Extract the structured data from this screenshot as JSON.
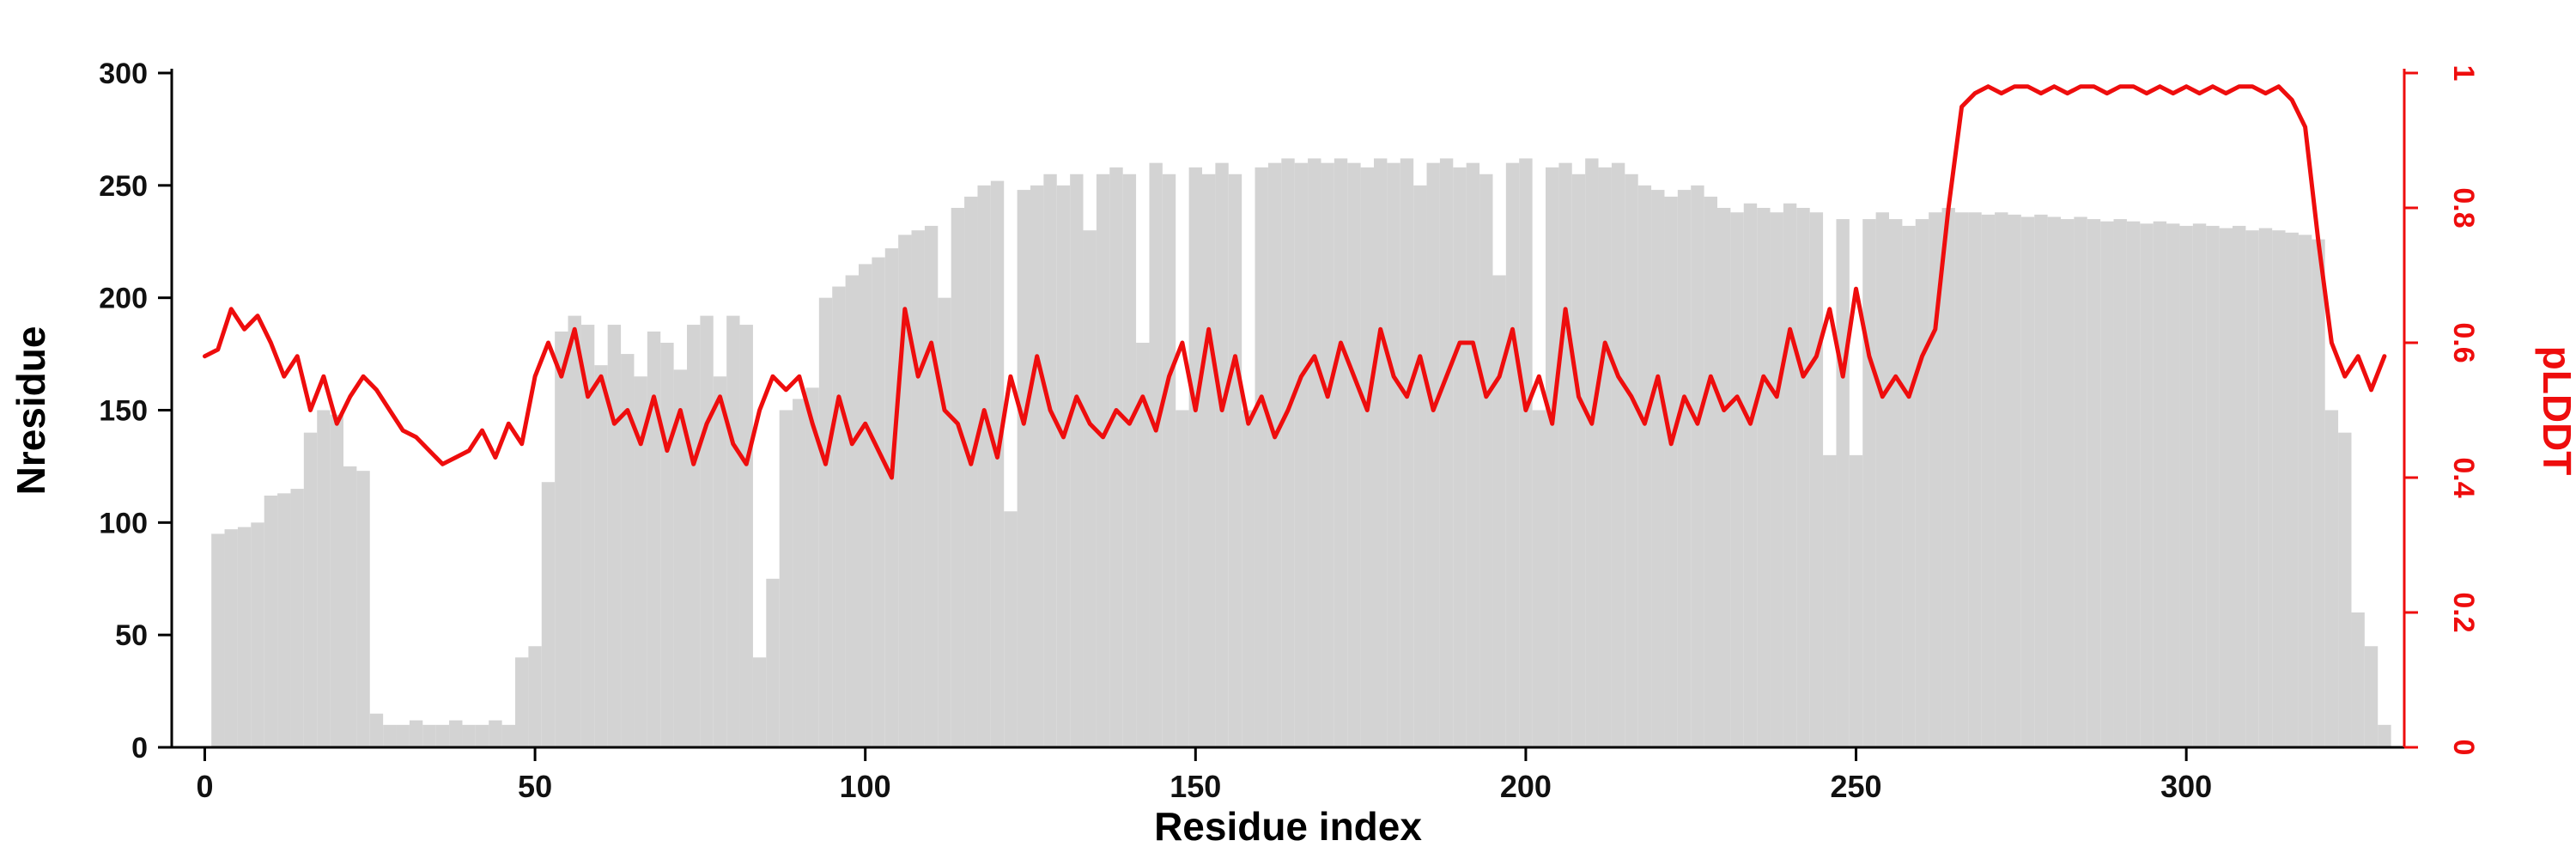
{
  "figure": {
    "background": "#ffffff",
    "bar_color": "#d3d3d3",
    "line_color": "#ee0d0d",
    "left_axis_color": "#000000",
    "bottom_axis_color": "#000000",
    "right_axis_color": "#ee0d0d"
  },
  "chart_data": {
    "type": "combo",
    "title": "",
    "xlabel": "Residue index",
    "ylabel_left": "Nresidue",
    "ylabel_right": "pLDDT",
    "xlim": [
      -5,
      333
    ],
    "ylim_left": [
      0,
      300
    ],
    "ylim_right": [
      0,
      1
    ],
    "x_ticks": [
      0,
      50,
      100,
      150,
      200,
      250,
      300
    ],
    "yleft_ticks": [
      0,
      50,
      100,
      150,
      200,
      250,
      300
    ],
    "yright_ticks": [
      0,
      0.2,
      0.4,
      0.6,
      0.8,
      1
    ],
    "yright_tick_labels": [
      "0",
      "0.2",
      "0.4",
      "0.6",
      "0.8",
      "1"
    ],
    "grid": false,
    "legend": "none",
    "x": [
      0,
      2,
      4,
      6,
      8,
      10,
      12,
      14,
      16,
      18,
      20,
      22,
      24,
      26,
      28,
      30,
      32,
      34,
      36,
      38,
      40,
      42,
      44,
      46,
      48,
      50,
      52,
      54,
      56,
      58,
      60,
      62,
      64,
      66,
      68,
      70,
      72,
      74,
      76,
      78,
      80,
      82,
      84,
      86,
      88,
      90,
      92,
      94,
      96,
      98,
      100,
      102,
      104,
      106,
      108,
      110,
      112,
      114,
      116,
      118,
      120,
      122,
      124,
      126,
      128,
      130,
      132,
      134,
      136,
      138,
      140,
      142,
      144,
      146,
      148,
      150,
      152,
      154,
      156,
      158,
      160,
      162,
      164,
      166,
      168,
      170,
      172,
      174,
      176,
      178,
      180,
      182,
      184,
      186,
      188,
      190,
      192,
      194,
      196,
      198,
      200,
      202,
      204,
      206,
      208,
      210,
      212,
      214,
      216,
      218,
      220,
      222,
      224,
      226,
      228,
      230,
      232,
      234,
      236,
      238,
      240,
      242,
      244,
      246,
      248,
      250,
      252,
      254,
      256,
      258,
      260,
      262,
      264,
      266,
      268,
      270,
      272,
      274,
      276,
      278,
      280,
      282,
      284,
      286,
      288,
      290,
      292,
      294,
      296,
      298,
      300,
      302,
      304,
      306,
      308,
      310,
      312,
      314,
      316,
      318,
      320,
      322,
      324,
      326,
      328,
      330
    ],
    "series": [
      {
        "name": "Nresidue",
        "type": "bar",
        "axis": "left",
        "color": "#d3d3d3",
        "values": [
          0,
          95,
          97,
          98,
          100,
          112,
          113,
          115,
          140,
          150,
          148,
          125,
          123,
          15,
          10,
          10,
          12,
          10,
          10,
          12,
          10,
          10,
          12,
          10,
          40,
          45,
          118,
          185,
          192,
          188,
          170,
          188,
          175,
          165,
          185,
          180,
          168,
          188,
          192,
          165,
          192,
          188,
          40,
          75,
          150,
          155,
          160,
          200,
          205,
          210,
          215,
          218,
          222,
          228,
          230,
          232,
          200,
          240,
          245,
          250,
          252,
          105,
          248,
          250,
          255,
          250,
          255,
          230,
          255,
          258,
          255,
          180,
          260,
          255,
          150,
          258,
          255,
          260,
          255,
          150,
          258,
          260,
          262,
          260,
          262,
          260,
          262,
          260,
          258,
          262,
          260,
          262,
          250,
          260,
          262,
          258,
          260,
          255,
          210,
          260,
          262,
          150,
          258,
          260,
          255,
          262,
          258,
          260,
          255,
          250,
          248,
          245,
          248,
          250,
          245,
          240,
          238,
          242,
          240,
          238,
          242,
          240,
          238,
          130,
          235,
          130,
          235,
          238,
          235,
          232,
          235,
          238,
          240,
          238,
          238,
          237,
          238,
          237,
          236,
          237,
          236,
          235,
          236,
          235,
          234,
          235,
          234,
          233,
          234,
          233,
          232,
          233,
          232,
          231,
          232,
          230,
          231,
          230,
          229,
          228,
          226,
          150,
          140,
          60,
          45,
          10
        ]
      },
      {
        "name": "pLDDT",
        "type": "line",
        "axis": "right",
        "color": "#ee0d0d",
        "values": [
          0.58,
          0.59,
          0.65,
          0.62,
          0.64,
          0.6,
          0.55,
          0.58,
          0.5,
          0.55,
          0.48,
          0.52,
          0.55,
          0.53,
          0.5,
          0.47,
          0.46,
          0.44,
          0.42,
          0.43,
          0.44,
          0.47,
          0.43,
          0.48,
          0.45,
          0.55,
          0.6,
          0.55,
          0.62,
          0.52,
          0.55,
          0.48,
          0.5,
          0.45,
          0.52,
          0.44,
          0.5,
          0.42,
          0.48,
          0.52,
          0.45,
          0.42,
          0.5,
          0.55,
          0.53,
          0.55,
          0.48,
          0.42,
          0.52,
          0.45,
          0.48,
          0.44,
          0.4,
          0.65,
          0.55,
          0.6,
          0.5,
          0.48,
          0.42,
          0.5,
          0.43,
          0.55,
          0.48,
          0.58,
          0.5,
          0.46,
          0.52,
          0.48,
          0.46,
          0.5,
          0.48,
          0.52,
          0.47,
          0.55,
          0.6,
          0.5,
          0.62,
          0.5,
          0.58,
          0.48,
          0.52,
          0.46,
          0.5,
          0.55,
          0.58,
          0.52,
          0.6,
          0.55,
          0.5,
          0.62,
          0.55,
          0.52,
          0.58,
          0.5,
          0.55,
          0.6,
          0.6,
          0.52,
          0.55,
          0.62,
          0.5,
          0.55,
          0.48,
          0.65,
          0.52,
          0.48,
          0.6,
          0.55,
          0.52,
          0.48,
          0.55,
          0.45,
          0.52,
          0.48,
          0.55,
          0.5,
          0.52,
          0.48,
          0.55,
          0.52,
          0.62,
          0.55,
          0.58,
          0.65,
          0.55,
          0.68,
          0.58,
          0.52,
          0.55,
          0.52,
          0.58,
          0.62,
          0.8,
          0.95,
          0.97,
          0.98,
          0.97,
          0.98,
          0.98,
          0.97,
          0.98,
          0.97,
          0.98,
          0.98,
          0.97,
          0.98,
          0.98,
          0.97,
          0.98,
          0.97,
          0.98,
          0.97,
          0.98,
          0.97,
          0.98,
          0.98,
          0.97,
          0.98,
          0.96,
          0.92,
          0.75,
          0.6,
          0.55,
          0.58,
          0.53,
          0.58
        ]
      }
    ]
  }
}
